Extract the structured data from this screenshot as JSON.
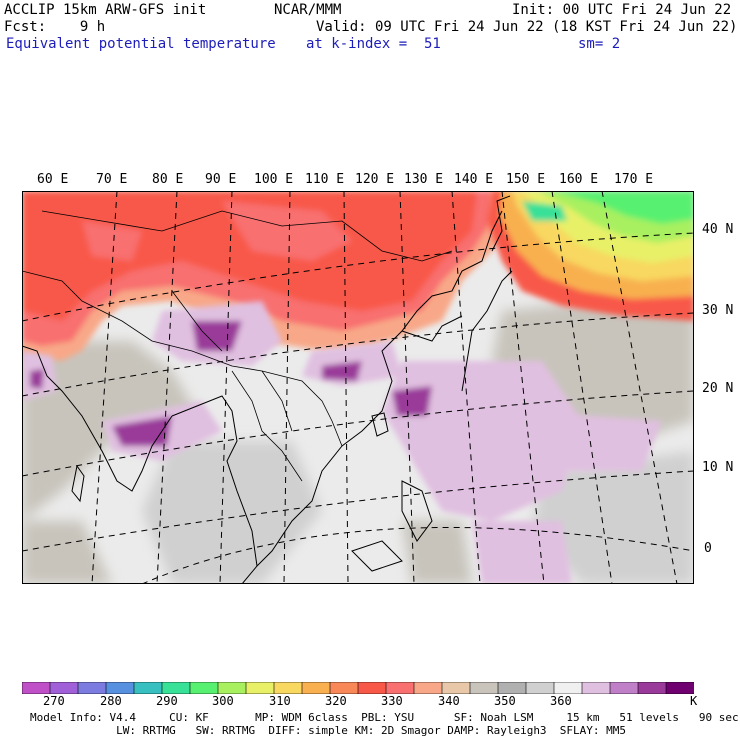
{
  "header": {
    "model": "ACCLIP 15km ARW-GFS init",
    "org": "NCAR/MMM",
    "init": "Init: 00 UTC Fri 24 Jun 22",
    "fcst": "Fcst:    9 h",
    "valid": "Valid: 09 UTC Fri 24 Jun 22 (18 KST Fri 24 Jun 22)",
    "field": "Equivalent potential temperature",
    "level": "at k-index =  51",
    "smooth": "sm= 2"
  },
  "map": {
    "lon_labels": [
      "60 E",
      "70 E",
      "80 E",
      "90 E",
      "100 E",
      "110 E",
      "120 E",
      "130 E",
      "140 E",
      "150 E",
      "160 E",
      "170 E"
    ],
    "lat_labels": [
      "40 N",
      "30 N",
      "20 N",
      "10 N",
      "0"
    ]
  },
  "colorbar": {
    "colors": [
      "#c050c8",
      "#a060d8",
      "#7c7ce0",
      "#5890e0",
      "#38c0c0",
      "#38e098",
      "#58f070",
      "#a8f060",
      "#e8f068",
      "#f8d860",
      "#f8b050",
      "#f88858",
      "#f85848",
      "#f87070",
      "#f8a888",
      "#e8c8a8",
      "#c8c4bc",
      "#b0b0b0",
      "#d0d0d0",
      "#f0f0f0",
      "#e0c0e0",
      "#c080c8",
      "#9a3a9a",
      "#700070"
    ],
    "labels": [
      "270",
      "280",
      "290",
      "300",
      "310",
      "320",
      "330",
      "340",
      "350",
      "360"
    ],
    "unit": "K"
  },
  "footer": {
    "line1": "Model Info: V4.4     CU: KF       MP: WDM 6class  PBL: YSU      SF: Noah LSM     15 km   51 levels   90 sec",
    "line2": "             LW: RRTMG   SW: RRTMG  DIFF: simple KM: 2D Smagor DAMP: Rayleigh3  SFLAY: MM5"
  }
}
